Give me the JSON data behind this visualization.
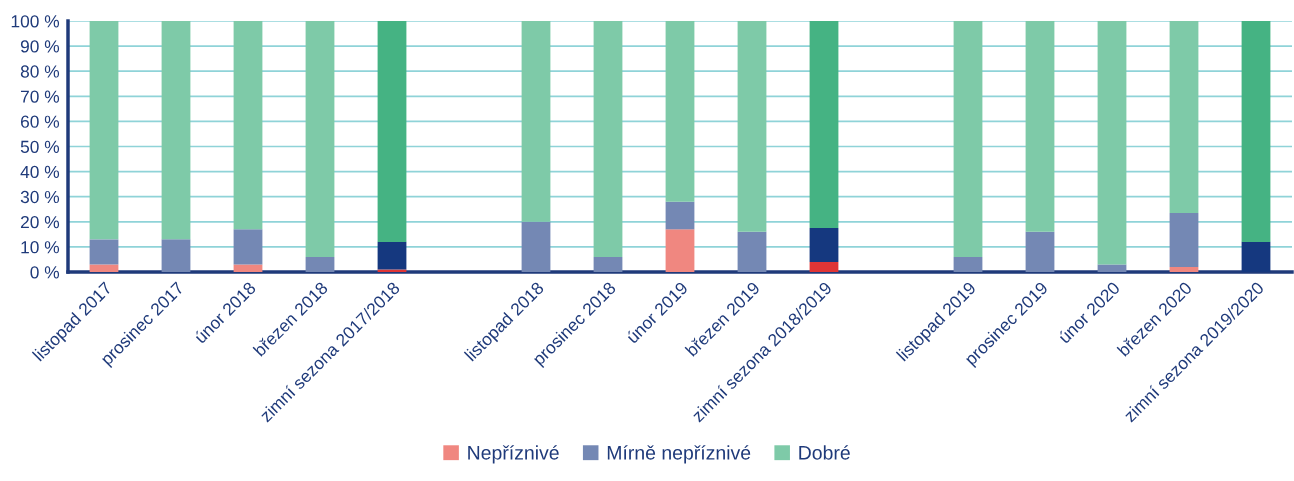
{
  "chart_data": {
    "type": "bar",
    "stacked": true,
    "categories": [
      "listopad 2017",
      "prosinec 2017",
      "únor 2018",
      "březen 2018",
      "zimní sezona 2017/2018",
      null,
      "listopad 2018",
      "prosinec 2018",
      "únor 2019",
      "březen 2019",
      "zimní sezona 2018/2019",
      null,
      "listopad 2019",
      "prosinec 2019",
      "únor 2020",
      "březen 2020",
      "zimní sezona 2019/2020"
    ],
    "series": [
      {
        "name": "Nepříznivé",
        "color": "#f08780",
        "colors": [
          "#f08780",
          "#f08780",
          "#f08780",
          "#f08780",
          "#e03535",
          null,
          "#f08780",
          "#f08780",
          "#f08780",
          "#f08780",
          "#e03535",
          null,
          "#f08780",
          "#f08780",
          "#f08780",
          "#f08780",
          "#e03535"
        ],
        "values": [
          3,
          0,
          3,
          0,
          1,
          null,
          0,
          0,
          17,
          0,
          4,
          null,
          0,
          0,
          0,
          2,
          0
        ]
      },
      {
        "name": "Mírně nepříznivé",
        "color": "#7488b4",
        "colors": [
          "#7488b4",
          "#7488b4",
          "#7488b4",
          "#7488b4",
          "#15387f",
          null,
          "#7488b4",
          "#7488b4",
          "#7488b4",
          "#7488b4",
          "#15387f",
          null,
          "#7488b4",
          "#7488b4",
          "#7488b4",
          "#7488b4",
          "#15387f"
        ],
        "values": [
          10,
          13,
          14,
          6,
          11,
          null,
          20,
          6,
          11,
          16,
          13.5,
          null,
          6,
          16,
          3,
          21.5,
          12
        ]
      },
      {
        "name": "Dobré",
        "color": "#7ecaa8",
        "colors": [
          "#7ecaa8",
          "#7ecaa8",
          "#7ecaa8",
          "#7ecaa8",
          "#45b383",
          null,
          "#7ecaa8",
          "#7ecaa8",
          "#7ecaa8",
          "#7ecaa8",
          "#45b383",
          null,
          "#7ecaa8",
          "#7ecaa8",
          "#7ecaa8",
          "#7ecaa8",
          "#45b383"
        ],
        "values": [
          87,
          87,
          83,
          94,
          88,
          null,
          80,
          94,
          72,
          84,
          82.5,
          null,
          94,
          84,
          97,
          76.5,
          88
        ]
      }
    ],
    "ylim": [
      0,
      100
    ],
    "yticks": [
      {
        "value": 0,
        "label": "0 %"
      },
      {
        "value": 10,
        "label": "10 %"
      },
      {
        "value": 20,
        "label": "20 %"
      },
      {
        "value": 30,
        "label": "30 %"
      },
      {
        "value": 40,
        "label": "40 %"
      },
      {
        "value": 50,
        "label": "50 %"
      },
      {
        "value": 60,
        "label": "60 %"
      },
      {
        "value": 70,
        "label": "70 %"
      },
      {
        "value": 80,
        "label": "80 %"
      },
      {
        "value": 90,
        "label": "90 %"
      },
      {
        "value": 100,
        "label": "100 %"
      }
    ],
    "grid": "y",
    "legend": "bottom"
  }
}
